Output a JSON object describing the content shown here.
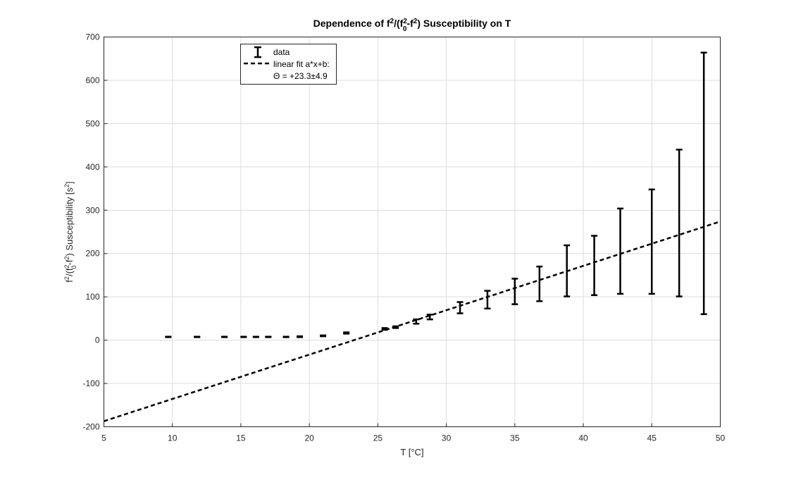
{
  "chart_data": {
    "type": "scatter",
    "title": {
      "parts": [
        {
          "t": "Dependence of f",
          "s": "n"
        },
        {
          "t": "2",
          "s": "sup"
        },
        {
          "t": "/(f",
          "s": "n"
        },
        {
          "t": "2",
          "s": "sup"
        },
        {
          "t": "0",
          "s": "sub"
        },
        {
          "t": "-f",
          "s": "n"
        },
        {
          "t": "2",
          "s": "sup"
        },
        {
          "t": ") Susceptibility on T",
          "s": "n"
        }
      ]
    },
    "xlabel": "T [°C]",
    "ylabel": {
      "parts": [
        {
          "t": "f",
          "s": "n"
        },
        {
          "t": "2",
          "s": "sup"
        },
        {
          "t": "/(f",
          "s": "n"
        },
        {
          "t": "2",
          "s": "sup"
        },
        {
          "t": "0",
          "s": "sub"
        },
        {
          "t": "-f",
          "s": "n"
        },
        {
          "t": "2",
          "s": "sup"
        },
        {
          "t": ") Susceptibility [s",
          "s": "n"
        },
        {
          "t": "2",
          "s": "sup"
        },
        {
          "t": "]",
          "s": "n"
        }
      ]
    },
    "xlim": [
      5,
      50
    ],
    "ylim": [
      -200,
      700
    ],
    "xticks": [
      "5",
      "10",
      "15",
      "20",
      "25",
      "30",
      "35",
      "40",
      "45",
      "50"
    ],
    "yticks": [
      "-200",
      "-100",
      "0",
      "100",
      "200",
      "300",
      "400",
      "500",
      "600",
      "700"
    ],
    "grid": true,
    "legend": {
      "position": "top-left",
      "data_label": "data",
      "fit_label": "linear fit a*x+b:",
      "theta_label": "Θ = +23.3±4.9"
    },
    "series": [
      {
        "name": "data",
        "kind": "errorbar",
        "points": [
          {
            "x": 9.7,
            "lo": 7,
            "hi": 8
          },
          {
            "x": 11.8,
            "lo": 7,
            "hi": 8
          },
          {
            "x": 13.8,
            "lo": 7,
            "hi": 8
          },
          {
            "x": 15.2,
            "lo": 7,
            "hi": 8
          },
          {
            "x": 16.1,
            "lo": 7,
            "hi": 8
          },
          {
            "x": 17.0,
            "lo": 7,
            "hi": 8
          },
          {
            "x": 18.3,
            "lo": 7,
            "hi": 8
          },
          {
            "x": 19.3,
            "lo": 7,
            "hi": 9
          },
          {
            "x": 21.0,
            "lo": 9,
            "hi": 11
          },
          {
            "x": 22.7,
            "lo": 15,
            "hi": 18
          },
          {
            "x": 25.5,
            "lo": 24,
            "hi": 28
          },
          {
            "x": 26.3,
            "lo": 28,
            "hi": 32
          },
          {
            "x": 27.8,
            "lo": 38,
            "hi": 48
          },
          {
            "x": 28.8,
            "lo": 48,
            "hi": 59
          },
          {
            "x": 31.0,
            "lo": 62,
            "hi": 88
          },
          {
            "x": 33.0,
            "lo": 73,
            "hi": 114
          },
          {
            "x": 35.0,
            "lo": 83,
            "hi": 142
          },
          {
            "x": 36.8,
            "lo": 90,
            "hi": 170
          },
          {
            "x": 38.8,
            "lo": 101,
            "hi": 219
          },
          {
            "x": 40.8,
            "lo": 104,
            "hi": 241
          },
          {
            "x": 42.7,
            "lo": 107,
            "hi": 304
          },
          {
            "x": 45.0,
            "lo": 107,
            "hi": 348
          },
          {
            "x": 47.0,
            "lo": 101,
            "hi": 440
          },
          {
            "x": 48.8,
            "lo": 60,
            "hi": 664
          }
        ]
      },
      {
        "name": "linear fit a*x+b:",
        "kind": "line",
        "style": "dashed",
        "x": [
          5,
          50
        ],
        "y": [
          -187,
          274
        ]
      }
    ],
    "colors": {
      "data": "#000000",
      "fit": "#000000",
      "grid": "#dcdcdc",
      "axis": "#262626"
    }
  }
}
